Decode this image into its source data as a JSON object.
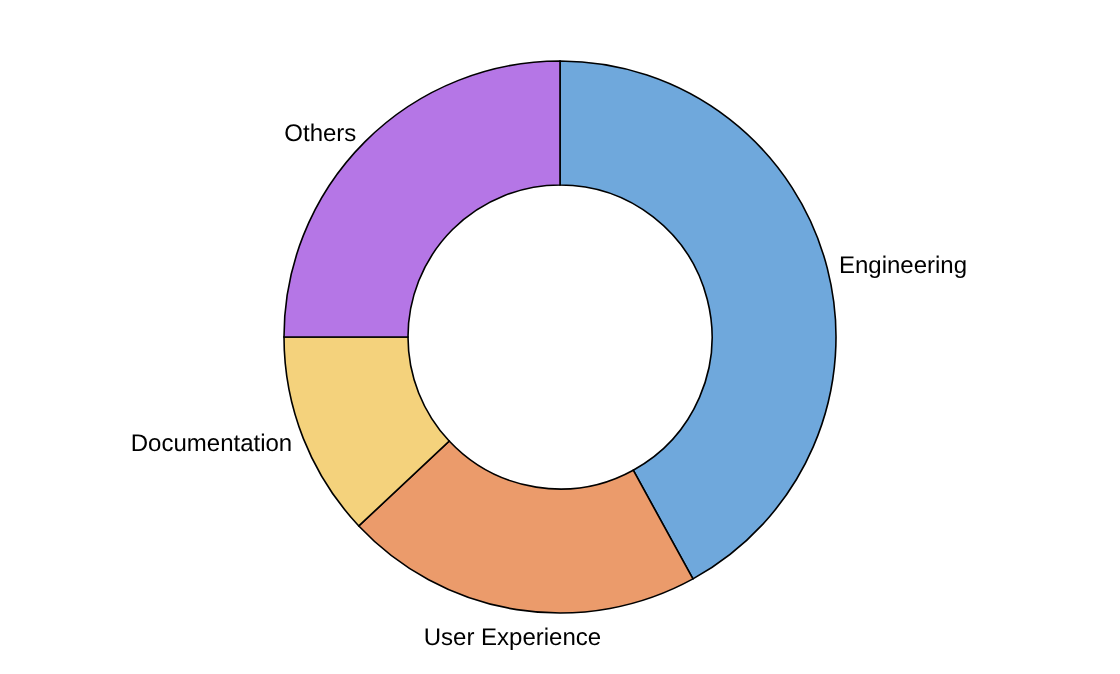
{
  "chart_data": {
    "type": "donut",
    "categories": [
      "Engineering",
      "User Experience",
      "Documentation",
      "Others"
    ],
    "values": [
      42,
      21,
      12,
      25
    ],
    "colors": [
      "#6fa8dc",
      "#eb9b6b",
      "#f4d27c",
      "#b576e6"
    ]
  }
}
